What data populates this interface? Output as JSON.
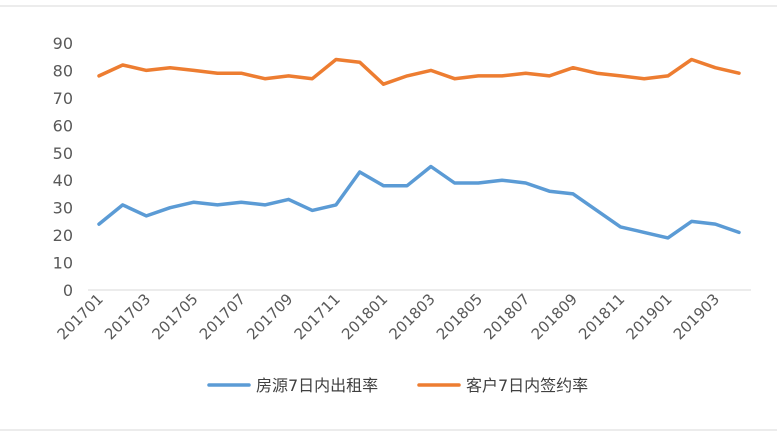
{
  "chart_data": {
    "type": "line",
    "title": "",
    "xlabel": "",
    "ylabel": "",
    "ylim": [
      0,
      90
    ],
    "yticks": [
      0,
      10,
      20,
      30,
      40,
      50,
      60,
      70,
      80,
      90
    ],
    "grid": false,
    "legend_position": "bottom",
    "x": [
      "201701",
      "201702",
      "201703",
      "201704",
      "201705",
      "201706",
      "201707",
      "201708",
      "201709",
      "201710",
      "201711",
      "201712",
      "201801",
      "201802",
      "201803",
      "201804",
      "201805",
      "201806",
      "201807",
      "201808",
      "201809",
      "201810",
      "201811",
      "201812",
      "201901",
      "201902",
      "201903",
      "201904"
    ],
    "x_tick_labels": [
      "201701",
      "201703",
      "201705",
      "201707",
      "201709",
      "201711",
      "201801",
      "201803",
      "201805",
      "201807",
      "201809",
      "201811",
      "201901",
      "201903"
    ],
    "series": [
      {
        "name": "房源7日内出租率",
        "color": "#5b9bd5",
        "values": [
          24,
          31,
          27,
          30,
          32,
          31,
          32,
          31,
          33,
          29,
          31,
          43,
          38,
          38,
          45,
          39,
          39,
          40,
          39,
          36,
          35,
          29,
          23,
          21,
          19,
          25,
          24,
          21
        ]
      },
      {
        "name": "客户7日内签约率",
        "color": "#ed7d31",
        "values": [
          78,
          82,
          80,
          81,
          80,
          79,
          79,
          77,
          78,
          77,
          84,
          83,
          75,
          78,
          80,
          77,
          78,
          78,
          79,
          78,
          81,
          79,
          78,
          77,
          78,
          84,
          81,
          79
        ]
      }
    ]
  }
}
